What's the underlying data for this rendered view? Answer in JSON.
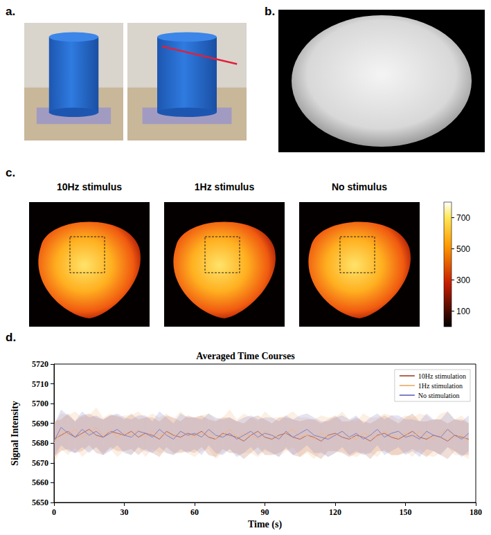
{
  "panel_labels": [
    "a.",
    "b.",
    "c.",
    "d."
  ],
  "panel_c": {
    "titles": [
      "10Hz stimulus",
      "1Hz stimulus",
      "No stimulus"
    ],
    "colorbar": {
      "range": [
        0,
        800
      ],
      "ticks": [
        100,
        300,
        500,
        700
      ]
    }
  },
  "chart_data": {
    "type": "line",
    "title": "Averaged Time Courses",
    "x_label": "Time (s)",
    "y_label": "Signal Intensity",
    "x": [
      0,
      3,
      6,
      9,
      12,
      15,
      18,
      21,
      24,
      27,
      30,
      33,
      36,
      39,
      42,
      45,
      48,
      51,
      54,
      57,
      60,
      63,
      66,
      69,
      72,
      75,
      78,
      81,
      84,
      87,
      90,
      93,
      96,
      99,
      102,
      105,
      108,
      111,
      114,
      117,
      120,
      123,
      126,
      129,
      132,
      135,
      138,
      141,
      144,
      147,
      150,
      153,
      156,
      159,
      162,
      165,
      168,
      171,
      174,
      177
    ],
    "xlim": [
      0,
      180
    ],
    "xticks": [
      0,
      30,
      60,
      90,
      120,
      150,
      180
    ],
    "ylim": [
      5650,
      5720
    ],
    "yticks": [
      5650,
      5660,
      5670,
      5680,
      5690,
      5700,
      5710,
      5720
    ],
    "grid": false,
    "legend": "upper right",
    "series": [
      {
        "name": "10Hz stimulation",
        "color": "#b5654f",
        "values": [
          5682,
          5684,
          5686,
          5683,
          5685,
          5687,
          5684,
          5683,
          5686,
          5685,
          5684,
          5686,
          5683,
          5685,
          5684,
          5682,
          5686,
          5684,
          5683,
          5685,
          5684,
          5686,
          5683,
          5682,
          5685,
          5684,
          5683,
          5681,
          5684,
          5686,
          5683,
          5682,
          5684,
          5685,
          5683,
          5682,
          5684,
          5683,
          5681,
          5684,
          5685,
          5683,
          5682,
          5684,
          5683,
          5681,
          5684,
          5685,
          5683,
          5682,
          5684,
          5686,
          5683,
          5682,
          5684,
          5683,
          5681,
          5684,
          5683,
          5682
        ],
        "errors": [
          9,
          8,
          9,
          8,
          9,
          8,
          9,
          9,
          8,
          9,
          8,
          9,
          9,
          8,
          9,
          9,
          8,
          9,
          8,
          9,
          9,
          8,
          9,
          9,
          8,
          9,
          8,
          9,
          9,
          8,
          9,
          8,
          9,
          8,
          9,
          9,
          8,
          9,
          9,
          8,
          9,
          8,
          9,
          9,
          8,
          9,
          8,
          9,
          9,
          8,
          9,
          9,
          8,
          9,
          8,
          9,
          9,
          8,
          9,
          8
        ]
      },
      {
        "name": "1Hz stimulation",
        "color": "#f2b77f",
        "values": [
          5680,
          5686,
          5684,
          5687,
          5683,
          5685,
          5688,
          5684,
          5686,
          5683,
          5685,
          5684,
          5687,
          5683,
          5686,
          5684,
          5685,
          5683,
          5686,
          5684,
          5683,
          5685,
          5686,
          5682,
          5684,
          5687,
          5683,
          5685,
          5684,
          5682,
          5686,
          5684,
          5683,
          5685,
          5687,
          5683,
          5684,
          5682,
          5685,
          5683,
          5684,
          5686,
          5683,
          5682,
          5685,
          5684,
          5683,
          5686,
          5684,
          5683,
          5685,
          5683,
          5686,
          5684,
          5682,
          5685,
          5687,
          5683,
          5684,
          5681
        ],
        "errors": [
          10,
          9,
          10,
          9,
          10,
          9,
          10,
          9,
          9,
          10,
          9,
          10,
          9,
          10,
          9,
          9,
          10,
          9,
          10,
          9,
          10,
          9,
          9,
          10,
          9,
          10,
          9,
          10,
          9,
          9,
          10,
          9,
          10,
          9,
          9,
          10,
          9,
          10,
          9,
          10,
          9,
          10,
          9,
          9,
          10,
          9,
          10,
          9,
          10,
          9,
          9,
          10,
          9,
          10,
          9,
          10,
          9,
          9,
          10,
          9
        ]
      },
      {
        "name": "No stimulation",
        "color": "#7f80c8",
        "values": [
          5681,
          5688,
          5685,
          5683,
          5687,
          5684,
          5686,
          5683,
          5685,
          5687,
          5684,
          5683,
          5686,
          5685,
          5683,
          5687,
          5684,
          5682,
          5686,
          5684,
          5685,
          5683,
          5687,
          5684,
          5683,
          5685,
          5682,
          5684,
          5686,
          5683,
          5685,
          5684,
          5682,
          5686,
          5683,
          5685,
          5687,
          5684,
          5683,
          5682,
          5684,
          5686,
          5683,
          5685,
          5682,
          5684,
          5687,
          5683,
          5685,
          5686,
          5683,
          5684,
          5682,
          5686,
          5684,
          5683,
          5687,
          5684,
          5682,
          5685
        ],
        "errors": [
          8,
          9,
          9,
          8,
          9,
          9,
          8,
          9,
          9,
          8,
          9,
          9,
          8,
          9,
          8,
          9,
          9,
          8,
          9,
          9,
          8,
          9,
          8,
          9,
          9,
          8,
          9,
          9,
          8,
          9,
          8,
          9,
          9,
          8,
          9,
          9,
          8,
          9,
          8,
          9,
          9,
          8,
          9,
          9,
          8,
          9,
          8,
          9,
          9,
          8,
          9,
          8,
          9,
          9,
          8,
          9,
          9,
          8,
          9,
          9
        ]
      }
    ]
  }
}
